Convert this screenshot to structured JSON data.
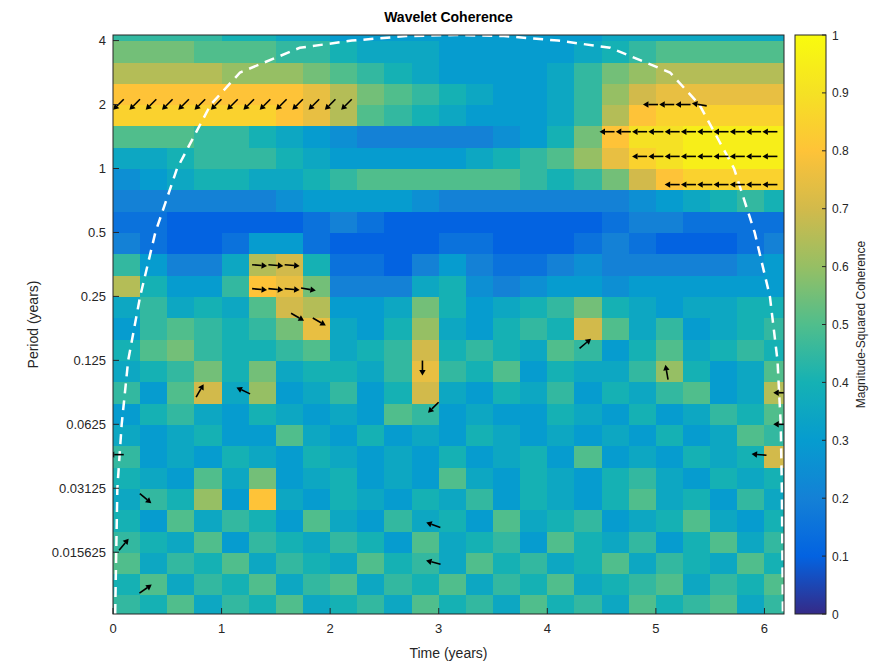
{
  "chart_data": {
    "type": "heatmap",
    "title": "Wavelet Coherence",
    "x_label": "Time (years)",
    "y_label": "Period (years)",
    "log": "y",
    "xlim": [
      0,
      6.18
    ],
    "xticks": [
      0,
      1,
      2,
      3,
      4,
      5,
      6
    ],
    "ylim": [
      0.008,
      4.25
    ],
    "yticks": [
      0.015625,
      0.03125,
      0.0625,
      0.125,
      0.25,
      0.5,
      1,
      2,
      4
    ],
    "x": [
      0.125,
      0.375,
      0.625,
      0.875,
      1.125,
      1.375,
      1.625,
      1.875,
      2.125,
      2.375,
      2.625,
      2.875,
      3.125,
      3.375,
      3.625,
      3.875,
      4.125,
      4.375,
      4.625,
      4.875,
      5.125,
      5.375,
      5.625,
      5.875,
      6.125
    ],
    "y": [
      0.00879,
      0.01105,
      0.01392,
      0.01754,
      0.0221,
      0.02784,
      0.03508,
      0.04419,
      0.05568,
      0.07015,
      0.08839,
      0.1114,
      0.1403,
      0.1768,
      0.2227,
      0.2806,
      0.3536,
      0.4454,
      0.5612,
      0.7071,
      0.8909,
      1.1225,
      1.4142,
      1.7818,
      2.245,
      2.828,
      3.564,
      4.49
    ],
    "cells": [
      [
        0.45,
        0.4,
        0.5,
        0.35,
        0.45,
        0.4,
        0.5,
        0.35,
        0.4,
        0.45,
        0.35,
        0.5,
        0.4,
        0.45,
        0.35,
        0.5,
        0.4,
        0.45,
        0.35,
        0.5,
        0.4,
        0.45,
        0.5,
        0.35,
        0.45
      ],
      [
        0.4,
        0.5,
        0.35,
        0.45,
        0.4,
        0.5,
        0.35,
        0.45,
        0.5,
        0.35,
        0.45,
        0.4,
        0.5,
        0.35,
        0.45,
        0.4,
        0.5,
        0.35,
        0.4,
        0.45,
        0.5,
        0.35,
        0.45,
        0.4,
        0.5
      ],
      [
        0.5,
        0.35,
        0.45,
        0.4,
        0.5,
        0.35,
        0.45,
        0.4,
        0.35,
        0.5,
        0.4,
        0.45,
        0.35,
        0.5,
        0.4,
        0.45,
        0.35,
        0.4,
        0.5,
        0.35,
        0.45,
        0.4,
        0.35,
        0.5,
        0.4
      ],
      [
        0.45,
        0.4,
        0.35,
        0.5,
        0.3,
        0.45,
        0.4,
        0.35,
        0.45,
        0.4,
        0.3,
        0.5,
        0.35,
        0.4,
        0.45,
        0.3,
        0.5,
        0.4,
        0.35,
        0.45,
        0.3,
        0.4,
        0.5,
        0.35,
        0.45
      ],
      [
        0.4,
        0.3,
        0.5,
        0.35,
        0.45,
        0.4,
        0.3,
        0.5,
        0.35,
        0.3,
        0.45,
        0.35,
        0.4,
        0.3,
        0.5,
        0.35,
        0.4,
        0.45,
        0.3,
        0.35,
        0.4,
        0.5,
        0.35,
        0.3,
        0.4
      ],
      [
        0.35,
        0.45,
        0.4,
        0.6,
        0.3,
        0.8,
        0.35,
        0.3,
        0.4,
        0.35,
        0.3,
        0.4,
        0.35,
        0.45,
        0.3,
        0.4,
        0.35,
        0.3,
        0.4,
        0.5,
        0.35,
        0.4,
        0.3,
        0.45,
        0.35
      ],
      [
        0.4,
        0.35,
        0.3,
        0.5,
        0.35,
        0.55,
        0.3,
        0.35,
        0.4,
        0.3,
        0.35,
        0.3,
        0.5,
        0.35,
        0.3,
        0.4,
        0.35,
        0.3,
        0.4,
        0.45,
        0.35,
        0.3,
        0.4,
        0.35,
        0.4
      ],
      [
        0.45,
        0.3,
        0.35,
        0.3,
        0.4,
        0.35,
        0.3,
        0.4,
        0.35,
        0.3,
        0.35,
        0.3,
        0.4,
        0.3,
        0.35,
        0.4,
        0.3,
        0.5,
        0.3,
        0.35,
        0.3,
        0.4,
        0.35,
        0.4,
        0.7
      ],
      [
        0.35,
        0.3,
        0.35,
        0.4,
        0.3,
        0.3,
        0.5,
        0.35,
        0.3,
        0.4,
        0.3,
        0.35,
        0.3,
        0.4,
        0.35,
        0.3,
        0.35,
        0.3,
        0.35,
        0.3,
        0.4,
        0.3,
        0.35,
        0.5,
        0.45
      ],
      [
        0.3,
        0.4,
        0.45,
        0.35,
        0.3,
        0.4,
        0.35,
        0.3,
        0.35,
        0.3,
        0.5,
        0.45,
        0.3,
        0.35,
        0.3,
        0.3,
        0.4,
        0.35,
        0.3,
        0.4,
        0.3,
        0.35,
        0.45,
        0.4,
        0.5
      ],
      [
        0.45,
        0.3,
        0.5,
        0.7,
        0.35,
        0.6,
        0.3,
        0.35,
        0.45,
        0.3,
        0.4,
        0.7,
        0.35,
        0.3,
        0.4,
        0.35,
        0.45,
        0.3,
        0.4,
        0.35,
        0.45,
        0.5,
        0.3,
        0.35,
        0.65
      ],
      [
        0.35,
        0.4,
        0.45,
        0.55,
        0.4,
        0.55,
        0.35,
        0.4,
        0.4,
        0.35,
        0.45,
        0.75,
        0.45,
        0.4,
        0.5,
        0.3,
        0.4,
        0.35,
        0.35,
        0.45,
        0.6,
        0.4,
        0.3,
        0.35,
        0.5
      ],
      [
        0.4,
        0.5,
        0.55,
        0.45,
        0.4,
        0.4,
        0.45,
        0.5,
        0.35,
        0.4,
        0.45,
        0.7,
        0.4,
        0.45,
        0.4,
        0.35,
        0.5,
        0.45,
        0.3,
        0.4,
        0.5,
        0.35,
        0.4,
        0.45,
        0.4
      ],
      [
        0.3,
        0.45,
        0.5,
        0.45,
        0.4,
        0.45,
        0.55,
        0.75,
        0.35,
        0.3,
        0.4,
        0.6,
        0.35,
        0.3,
        0.4,
        0.45,
        0.4,
        0.7,
        0.5,
        0.35,
        0.45,
        0.3,
        0.35,
        0.4,
        0.45
      ],
      [
        0.35,
        0.45,
        0.35,
        0.4,
        0.35,
        0.5,
        0.7,
        0.65,
        0.3,
        0.3,
        0.35,
        0.55,
        0.4,
        0.3,
        0.35,
        0.4,
        0.45,
        0.55,
        0.4,
        0.35,
        0.3,
        0.35,
        0.35,
        0.4,
        0.4
      ],
      [
        0.65,
        0.4,
        0.3,
        0.3,
        0.45,
        0.8,
        0.75,
        0.55,
        0.2,
        0.2,
        0.2,
        0.35,
        0.4,
        0.25,
        0.2,
        0.25,
        0.3,
        0.3,
        0.25,
        0.3,
        0.3,
        0.3,
        0.3,
        0.3,
        0.3
      ],
      [
        0.45,
        0.3,
        0.2,
        0.2,
        0.35,
        0.65,
        0.7,
        0.4,
        0.15,
        0.15,
        0.1,
        0.2,
        0.3,
        0.2,
        0.15,
        0.15,
        0.2,
        0.25,
        0.2,
        0.2,
        0.2,
        0.2,
        0.2,
        0.25,
        0.3
      ],
      [
        0.2,
        0.15,
        0.1,
        0.1,
        0.15,
        0.3,
        0.3,
        0.15,
        0.1,
        0.1,
        0.1,
        0.1,
        0.15,
        0.15,
        0.1,
        0.1,
        0.1,
        0.15,
        0.2,
        0.15,
        0.1,
        0.1,
        0.1,
        0.15,
        0.2
      ],
      [
        0.15,
        0.15,
        0.1,
        0.1,
        0.1,
        0.1,
        0.1,
        0.15,
        0.2,
        0.15,
        0.1,
        0.1,
        0.1,
        0.1,
        0.1,
        0.1,
        0.1,
        0.1,
        0.15,
        0.2,
        0.2,
        0.15,
        0.15,
        0.15,
        0.15
      ],
      [
        0.2,
        0.2,
        0.2,
        0.2,
        0.2,
        0.2,
        0.25,
        0.3,
        0.3,
        0.3,
        0.3,
        0.25,
        0.2,
        0.2,
        0.2,
        0.2,
        0.2,
        0.2,
        0.2,
        0.25,
        0.3,
        0.35,
        0.4,
        0.45,
        0.4
      ],
      [
        0.25,
        0.3,
        0.35,
        0.4,
        0.4,
        0.35,
        0.35,
        0.4,
        0.45,
        0.5,
        0.5,
        0.5,
        0.5,
        0.5,
        0.5,
        0.45,
        0.4,
        0.45,
        0.55,
        0.7,
        0.8,
        0.85,
        0.85,
        0.85,
        0.85
      ],
      [
        0.35,
        0.35,
        0.4,
        0.45,
        0.45,
        0.45,
        0.4,
        0.35,
        0.3,
        0.3,
        0.3,
        0.3,
        0.3,
        0.35,
        0.4,
        0.45,
        0.5,
        0.6,
        0.75,
        0.85,
        0.9,
        0.95,
        0.95,
        0.95,
        0.95
      ],
      [
        0.5,
        0.5,
        0.5,
        0.45,
        0.45,
        0.4,
        0.35,
        0.3,
        0.25,
        0.2,
        0.2,
        0.2,
        0.2,
        0.2,
        0.25,
        0.3,
        0.4,
        0.55,
        0.8,
        0.9,
        0.9,
        0.95,
        0.95,
        0.95,
        0.95
      ],
      [
        0.85,
        0.85,
        0.85,
        0.85,
        0.85,
        0.85,
        0.8,
        0.75,
        0.65,
        0.5,
        0.45,
        0.4,
        0.35,
        0.3,
        0.3,
        0.3,
        0.35,
        0.45,
        0.65,
        0.8,
        0.85,
        0.85,
        0.85,
        0.85,
        0.85
      ],
      [
        0.8,
        0.8,
        0.8,
        0.8,
        0.8,
        0.8,
        0.8,
        0.75,
        0.65,
        0.55,
        0.5,
        0.45,
        0.4,
        0.35,
        0.3,
        0.3,
        0.35,
        0.45,
        0.6,
        0.7,
        0.75,
        0.75,
        0.75,
        0.75,
        0.75
      ],
      [
        0.65,
        0.65,
        0.65,
        0.65,
        0.6,
        0.6,
        0.6,
        0.55,
        0.5,
        0.45,
        0.4,
        0.35,
        0.3,
        0.3,
        0.3,
        0.3,
        0.35,
        0.45,
        0.55,
        0.6,
        0.65,
        0.65,
        0.65,
        0.65,
        0.65
      ],
      [
        0.55,
        0.55,
        0.55,
        0.5,
        0.5,
        0.5,
        0.45,
        0.45,
        0.4,
        0.35,
        0.35,
        0.35,
        0.3,
        0.3,
        0.3,
        0.3,
        0.3,
        0.35,
        0.4,
        0.45,
        0.5,
        0.5,
        0.5,
        0.5,
        0.5
      ],
      [
        0.45,
        0.45,
        0.45,
        0.45,
        0.4,
        0.4,
        0.35,
        0.35,
        0.3,
        0.3,
        0.3,
        0.3,
        0.3,
        0.3,
        0.3,
        0.3,
        0.3,
        0.3,
        0.35,
        0.35,
        0.35,
        0.35,
        0.35,
        0.35,
        0.35
      ]
    ],
    "arrows": {
      "x": [
        0.05,
        0.2,
        0.35,
        0.5,
        0.65,
        0.8,
        0.95,
        1.1,
        1.25,
        1.4,
        1.55,
        1.7,
        1.85,
        2.0,
        2.15,
        4.95,
        5.1,
        5.25,
        5.4,
        4.55,
        4.7,
        4.85,
        5.0,
        5.15,
        5.3,
        5.45,
        5.6,
        5.75,
        5.9,
        6.05,
        4.85,
        5.0,
        5.15,
        5.3,
        5.45,
        5.6,
        5.75,
        5.9,
        6.05,
        5.15,
        5.3,
        5.45,
        5.6,
        5.75,
        5.9,
        6.05,
        1.35,
        1.5,
        1.65,
        1.35,
        1.5,
        1.65,
        1.8,
        1.7,
        1.9,
        2.85,
        4.35,
        0.8,
        1.2,
        2.95,
        5.1,
        6.15,
        6.15,
        5.95,
        0.03,
        0.3,
        0.1,
        2.95,
        2.95,
        0.3
      ],
      "y": [
        2,
        2,
        2,
        2,
        2,
        2,
        2,
        2,
        2,
        2,
        2,
        2,
        2,
        2,
        2,
        2,
        2,
        2,
        2,
        1.49,
        1.49,
        1.49,
        1.49,
        1.49,
        1.49,
        1.49,
        1.49,
        1.49,
        1.49,
        1.49,
        1.14,
        1.14,
        1.14,
        1.14,
        1.14,
        1.14,
        1.14,
        1.14,
        1.14,
        0.84,
        0.84,
        0.84,
        0.84,
        0.84,
        0.84,
        0.84,
        0.35,
        0.35,
        0.35,
        0.27,
        0.27,
        0.27,
        0.27,
        0.2,
        0.19,
        0.115,
        0.15,
        0.09,
        0.09,
        0.075,
        0.11,
        0.088,
        0.0625,
        0.045,
        0.045,
        0.028,
        0.017,
        0.021,
        0.014,
        0.0105
      ],
      "angle": [
        225,
        225,
        225,
        225,
        225,
        225,
        225,
        225,
        225,
        225,
        225,
        225,
        225,
        225,
        225,
        180,
        180,
        180,
        170,
        180,
        180,
        180,
        180,
        180,
        180,
        180,
        180,
        180,
        180,
        180,
        180,
        180,
        180,
        180,
        180,
        180,
        180,
        180,
        180,
        180,
        180,
        180,
        180,
        180,
        180,
        180,
        355,
        355,
        355,
        355,
        355,
        355,
        350,
        330,
        330,
        270,
        40,
        60,
        155,
        225,
        100,
        180,
        180,
        175,
        180,
        320,
        50,
        160,
        165,
        35
      ]
    },
    "cone_of_influence": {
      "x": [
        0.02,
        0.04,
        0.08,
        0.14,
        0.25,
        0.39,
        0.59,
        0.9,
        1.17,
        1.72,
        2.2,
        2.7,
        3.15,
        3.6,
        4.1,
        4.58,
        5.13,
        5.4,
        5.72,
        5.91,
        6.05,
        6.12,
        6.15,
        6.16,
        6.17
      ],
      "values": [
        0.008,
        0.03125,
        0.0625,
        0.125,
        0.25,
        0.5,
        1,
        2,
        2.83,
        3.7,
        4.0,
        4.2,
        4.25,
        4.2,
        4.0,
        3.7,
        2.83,
        2,
        1,
        0.5,
        0.25,
        0.125,
        0.0625,
        0.03125,
        0.008
      ]
    },
    "colorbar": {
      "label": "Magnitude-Squared Coherence",
      "range": [
        0,
        1
      ],
      "ticks": [
        0,
        0.1,
        0.2,
        0.3,
        0.4,
        0.5,
        0.6,
        0.7,
        0.8,
        0.9,
        1
      ]
    }
  }
}
